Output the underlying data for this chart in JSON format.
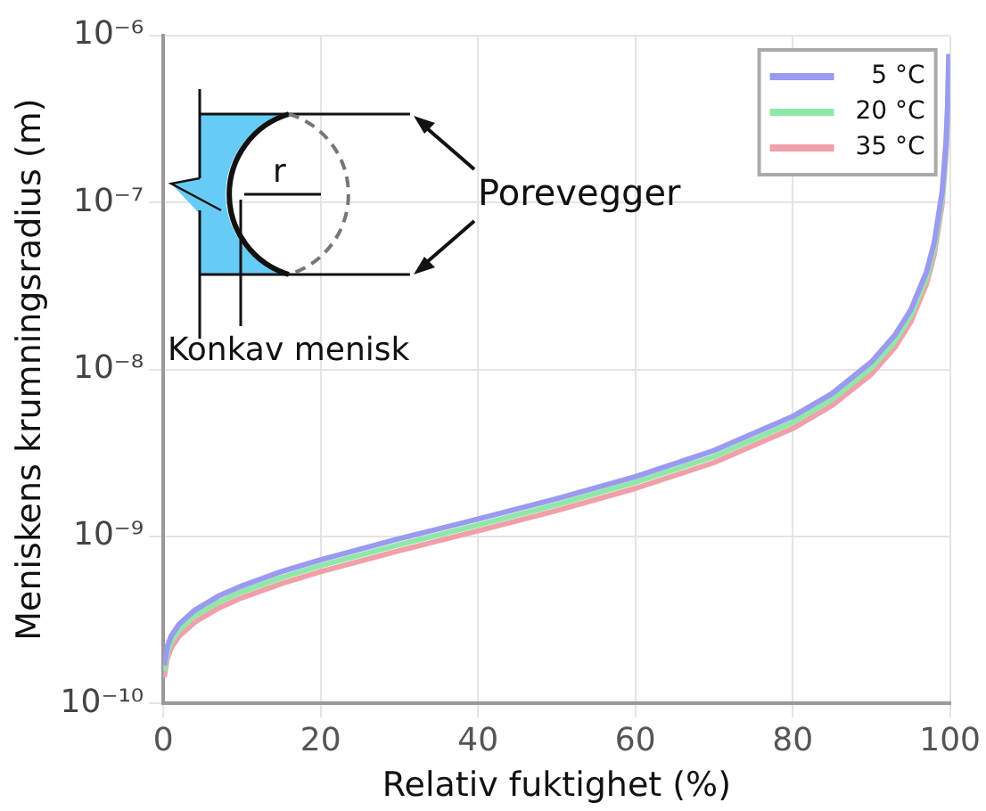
{
  "chart_data": {
    "type": "line",
    "xlabel": "Relativ fuktighet (%)",
    "ylabel": "Meniskens krumningsradius (m)",
    "x": [
      0.1,
      0.5,
      1,
      2,
      4,
      7,
      10,
      15,
      20,
      30,
      40,
      50,
      60,
      70,
      80,
      85,
      90,
      93,
      95,
      97,
      98,
      99,
      99.5,
      99.7,
      99.85
    ],
    "series": [
      {
        "name": "5 °C",
        "color": "#9a9af0",
        "values": [
          1.69e-10,
          2.2e-10,
          2.53e-10,
          2.98e-10,
          3.62e-10,
          4.39e-10,
          5.06e-10,
          6.15e-10,
          7.25e-10,
          9.69e-10,
          1.27e-09,
          1.68e-09,
          2.28e-09,
          3.27e-09,
          5.23e-09,
          7.18e-09,
          1.11e-08,
          1.61e-08,
          2.27e-08,
          3.83e-08,
          5.77e-08,
          1.16e-07,
          2.33e-07,
          3.88e-07,
          7.77e-07
        ]
      },
      {
        "name": "20 °C",
        "color": "#90e8a8",
        "values": [
          1.56e-10,
          2.03e-10,
          2.33e-10,
          2.75e-10,
          3.34e-10,
          4.04e-10,
          4.67e-10,
          5.67e-10,
          6.68e-10,
          8.93e-10,
          1.17e-09,
          1.55e-09,
          2.11e-09,
          3.01e-09,
          4.82e-09,
          6.62e-09,
          1.02e-08,
          1.48e-08,
          2.1e-08,
          3.53e-08,
          5.32e-08,
          1.07e-07,
          2.14e-07,
          3.58e-07,
          7.16e-07
        ]
      },
      {
        "name": "35 °C",
        "color": "#f0a0a8",
        "values": [
          1.43e-10,
          1.87e-10,
          2.15e-10,
          2.53e-10,
          3.07e-10,
          3.72e-10,
          4.3e-10,
          5.21e-10,
          6.15e-10,
          8.22e-10,
          1.08e-09,
          1.43e-09,
          1.94e-09,
          2.77e-09,
          4.43e-09,
          6.09e-09,
          9.38e-09,
          1.36e-08,
          1.93e-08,
          3.25e-08,
          4.9e-08,
          9.84e-08,
          1.97e-07,
          3.29e-07,
          null
        ]
      }
    ],
    "xlim": [
      0,
      100
    ],
    "xticks": [
      0,
      20,
      40,
      60,
      80,
      100
    ],
    "ylim": [
      1e-10,
      1e-06
    ],
    "yticks": [
      {
        "value": 1e-10,
        "label": "10⁻¹⁰"
      },
      {
        "value": 1e-09,
        "label": "10⁻⁹"
      },
      {
        "value": 1e-08,
        "label": "10⁻⁸"
      },
      {
        "value": 1e-07,
        "label": "10⁻⁷"
      },
      {
        "value": 1e-06,
        "label": "10⁻⁶"
      }
    ],
    "log": "y",
    "grid": true,
    "legend": "top right",
    "marker": "none",
    "line_style": "solid",
    "annotations": [
      "Porevegger",
      "Konkav menisk",
      "r"
    ]
  }
}
